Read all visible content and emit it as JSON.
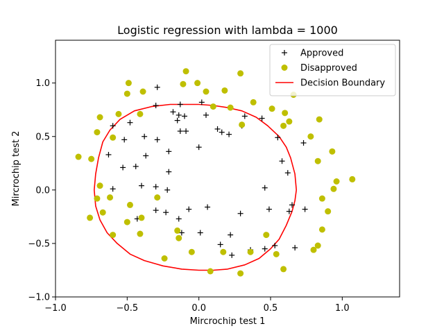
{
  "chart_data": {
    "type": "scatter",
    "title": "Logistic regression with lambda = 1000",
    "xlabel": "Mircrochip test 1",
    "ylabel": "Mircrochip test 2",
    "xlim": [
      -1.0,
      1.4
    ],
    "ylim": [
      -1.0,
      1.4
    ],
    "xticks": [
      -1.0,
      -0.5,
      0.0,
      0.5,
      1.0
    ],
    "yticks": [
      -1.0,
      -0.5,
      0.0,
      0.5,
      1.0
    ],
    "xtick_labels": [
      "−1.0",
      "−0.5",
      "0.0",
      "0.5",
      "1.0"
    ],
    "ytick_labels": [
      "−1.0",
      "−0.5",
      "0.0",
      "0.5",
      "1.0"
    ],
    "grid": false,
    "legend_position": "top-right",
    "series": [
      {
        "name": "Approved",
        "marker": "plus",
        "color": "#000000",
        "points": [
          [
            -0.29,
            0.96
          ],
          [
            -0.3,
            0.79
          ],
          [
            -0.18,
            0.73
          ],
          [
            -0.14,
            0.7
          ],
          [
            -0.15,
            0.65
          ],
          [
            -0.1,
            0.69
          ],
          [
            0.02,
            0.82
          ],
          [
            -0.13,
            0.8
          ],
          [
            0.05,
            0.7
          ],
          [
            -0.6,
            0.6
          ],
          [
            -0.48,
            0.63
          ],
          [
            -0.52,
            0.47
          ],
          [
            -0.38,
            0.5
          ],
          [
            -0.29,
            0.47
          ],
          [
            -0.63,
            0.33
          ],
          [
            -0.37,
            0.32
          ],
          [
            -0.13,
            0.55
          ],
          [
            -0.09,
            0.55
          ],
          [
            -0.21,
            0.36
          ],
          [
            0.13,
            0.57
          ],
          [
            0.16,
            0.54
          ],
          [
            0.21,
            0.52
          ],
          [
            0.0,
            0.4
          ],
          [
            0.32,
            0.69
          ],
          [
            0.44,
            0.67
          ],
          [
            0.3,
            0.6
          ],
          [
            0.55,
            0.49
          ],
          [
            0.58,
            0.27
          ],
          [
            0.62,
            0.16
          ],
          [
            0.73,
            0.44
          ],
          [
            -0.53,
            0.21
          ],
          [
            -0.44,
            0.22
          ],
          [
            -0.21,
            0.17
          ],
          [
            -0.6,
            0.01
          ],
          [
            -0.4,
            0.04
          ],
          [
            -0.3,
            0.03
          ],
          [
            -0.22,
            0.0
          ],
          [
            -0.3,
            -0.19
          ],
          [
            -0.23,
            -0.21
          ],
          [
            -0.43,
            -0.27
          ],
          [
            -0.14,
            -0.27
          ],
          [
            -0.07,
            -0.18
          ],
          [
            0.06,
            -0.16
          ],
          [
            0.29,
            -0.22
          ],
          [
            0.46,
            0.02
          ],
          [
            0.49,
            -0.18
          ],
          [
            0.65,
            -0.14
          ],
          [
            0.63,
            -0.2
          ],
          [
            0.74,
            -0.18
          ],
          [
            0.67,
            -0.54
          ],
          [
            0.53,
            -0.52
          ],
          [
            0.46,
            -0.55
          ],
          [
            0.36,
            -0.56
          ],
          [
            0.23,
            -0.61
          ],
          [
            0.15,
            -0.51
          ],
          [
            0.22,
            -0.42
          ],
          [
            0.01,
            -0.4
          ],
          [
            -0.12,
            -0.4
          ]
        ]
      },
      {
        "name": "Disapproved",
        "marker": "circle",
        "color": "#bfbf00",
        "points": [
          [
            -0.49,
            1.0
          ],
          [
            -0.5,
            0.9
          ],
          [
            -0.39,
            0.92
          ],
          [
            -0.09,
            1.11
          ],
          [
            -0.11,
            0.99
          ],
          [
            -0.01,
            1.0
          ],
          [
            0.05,
            0.92
          ],
          [
            0.18,
            0.93
          ],
          [
            0.29,
            1.09
          ],
          [
            0.1,
            0.78
          ],
          [
            0.22,
            0.77
          ],
          [
            0.38,
            0.82
          ],
          [
            0.51,
            0.76
          ],
          [
            0.6,
            0.72
          ],
          [
            0.63,
            0.64
          ],
          [
            0.59,
            0.6
          ],
          [
            0.66,
            0.89
          ],
          [
            0.84,
            0.66
          ],
          [
            0.78,
            0.5
          ],
          [
            0.93,
            0.36
          ],
          [
            0.83,
            0.27
          ],
          [
            0.96,
            0.08
          ],
          [
            0.94,
            0.01
          ],
          [
            1.07,
            0.1
          ],
          [
            0.86,
            -0.08
          ],
          [
            0.9,
            -0.2
          ],
          [
            0.86,
            -0.37
          ],
          [
            0.83,
            -0.52
          ],
          [
            0.8,
            -0.56
          ],
          [
            0.59,
            -0.74
          ],
          [
            0.54,
            -0.6
          ],
          [
            0.36,
            -0.58
          ],
          [
            0.47,
            -0.42
          ],
          [
            0.29,
            -0.78
          ],
          [
            0.17,
            -0.58
          ],
          [
            0.08,
            -0.76
          ],
          [
            -0.05,
            -0.58
          ],
          [
            -0.14,
            -0.45
          ],
          [
            -0.15,
            -0.38
          ],
          [
            -0.24,
            -0.64
          ],
          [
            -0.41,
            -0.41
          ],
          [
            -0.5,
            -0.3
          ],
          [
            -0.4,
            -0.26
          ],
          [
            -0.48,
            -0.14
          ],
          [
            -0.6,
            -0.42
          ],
          [
            -0.62,
            -0.07
          ],
          [
            -0.69,
            0.04
          ],
          [
            -0.71,
            -0.08
          ],
          [
            -0.76,
            -0.26
          ],
          [
            -0.67,
            -0.21
          ],
          [
            -0.75,
            0.29
          ],
          [
            -0.84,
            0.31
          ],
          [
            -0.71,
            0.54
          ],
          [
            -0.6,
            0.49
          ],
          [
            -0.69,
            0.68
          ],
          [
            -0.56,
            0.71
          ],
          [
            -0.41,
            0.71
          ],
          [
            -0.29,
            -0.07
          ],
          [
            0.3,
            0.61
          ]
        ]
      },
      {
        "name": "Decision Boundary",
        "marker": "line",
        "color": "#ff0000",
        "points": [
          [
            0.0,
            0.8
          ],
          [
            0.1,
            0.79
          ],
          [
            0.2,
            0.77
          ],
          [
            0.3,
            0.74
          ],
          [
            0.4,
            0.68
          ],
          [
            0.48,
            0.6
          ],
          [
            0.56,
            0.5
          ],
          [
            0.61,
            0.4
          ],
          [
            0.64,
            0.3
          ],
          [
            0.67,
            0.15
          ],
          [
            0.68,
            0.0
          ],
          [
            0.67,
            -0.1
          ],
          [
            0.65,
            -0.2
          ],
          [
            0.61,
            -0.33
          ],
          [
            0.56,
            -0.46
          ],
          [
            0.5,
            -0.55
          ],
          [
            0.42,
            -0.64
          ],
          [
            0.32,
            -0.7
          ],
          [
            0.2,
            -0.74
          ],
          [
            0.1,
            -0.75
          ],
          [
            0.0,
            -0.75
          ],
          [
            -0.12,
            -0.74
          ],
          [
            -0.25,
            -0.71
          ],
          [
            -0.38,
            -0.66
          ],
          [
            -0.48,
            -0.6
          ],
          [
            -0.57,
            -0.5
          ],
          [
            -0.64,
            -0.4
          ],
          [
            -0.69,
            -0.28
          ],
          [
            -0.72,
            -0.15
          ],
          [
            -0.73,
            0.0
          ],
          [
            -0.72,
            0.15
          ],
          [
            -0.7,
            0.3
          ],
          [
            -0.67,
            0.45
          ],
          [
            -0.62,
            0.56
          ],
          [
            -0.55,
            0.66
          ],
          [
            -0.45,
            0.74
          ],
          [
            -0.33,
            0.78
          ],
          [
            -0.2,
            0.8
          ],
          [
            -0.1,
            0.8
          ],
          [
            0.0,
            0.8
          ]
        ]
      }
    ]
  }
}
